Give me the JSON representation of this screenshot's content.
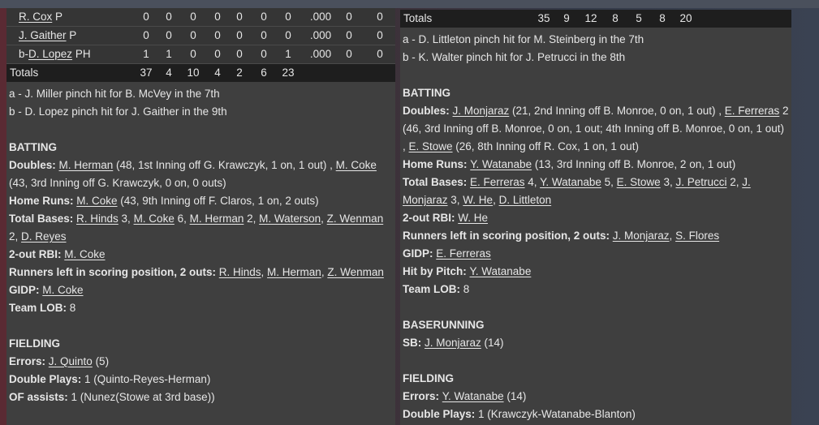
{
  "left": {
    "rows": [
      {
        "prefix": "",
        "name": "R. Cox",
        "pos": "P",
        "stats": [
          "0",
          "0",
          "0",
          "0",
          "0",
          "0",
          "0",
          ".000",
          "0",
          "0"
        ]
      },
      {
        "prefix": "",
        "name": "J. Gaither",
        "pos": "P",
        "stats": [
          "0",
          "0",
          "0",
          "0",
          "0",
          "0",
          "0",
          ".000",
          "0",
          "0"
        ]
      },
      {
        "prefix": "b-",
        "name": "D. Lopez",
        "pos": "PH",
        "stats": [
          "1",
          "1",
          "0",
          "0",
          "0",
          "0",
          "1",
          ".000",
          "0",
          "0"
        ]
      }
    ],
    "totals": {
      "label": "Totals",
      "stats": [
        "37",
        "4",
        "10",
        "4",
        "2",
        "6",
        "23"
      ]
    },
    "lines": [
      [
        {
          "t": "a - J. Miller pinch hit for B. McVey in the 7th"
        }
      ],
      [
        {
          "t": "b - D. Lopez pinch hit for J. Gaither in the 9th"
        }
      ],
      [],
      [
        {
          "t": "BATTING",
          "k": "b"
        }
      ],
      [
        {
          "t": "Doubles: ",
          "k": "b"
        },
        {
          "t": "M. Herman",
          "k": "a"
        },
        {
          "t": " (48, 1st Inning off G. Krawczyk, 1 on, 1 out) , "
        },
        {
          "t": "M. Coke",
          "k": "a"
        },
        {
          "t": " (43, 3rd Inning off G. Krawczyk, 0 on, 0 outs)"
        }
      ],
      [
        {
          "t": "Home Runs: ",
          "k": "b"
        },
        {
          "t": "M. Coke",
          "k": "a"
        },
        {
          "t": " (43, 9th Inning off F. Claros, 1 on, 2 outs)"
        }
      ],
      [
        {
          "t": "Total Bases: ",
          "k": "b"
        },
        {
          "t": "R. Hinds",
          "k": "a"
        },
        {
          "t": " 3, "
        },
        {
          "t": "M. Coke",
          "k": "a"
        },
        {
          "t": " 6, "
        },
        {
          "t": "M. Herman",
          "k": "a"
        },
        {
          "t": " 2, "
        },
        {
          "t": "M. Waterson",
          "k": "a"
        },
        {
          "t": ", "
        },
        {
          "t": "Z. Wenman",
          "k": "a"
        },
        {
          "t": " 2, "
        },
        {
          "t": "D. Reyes",
          "k": "a"
        }
      ],
      [
        {
          "t": "2-out RBI: ",
          "k": "b"
        },
        {
          "t": "M. Coke",
          "k": "a"
        }
      ],
      [
        {
          "t": "Runners left in scoring position, 2 outs: ",
          "k": "b"
        },
        {
          "t": "R. Hinds",
          "k": "a"
        },
        {
          "t": ", "
        },
        {
          "t": "M. Herman",
          "k": "a"
        },
        {
          "t": ", "
        },
        {
          "t": "Z. Wenman",
          "k": "a"
        }
      ],
      [
        {
          "t": "GIDP: ",
          "k": "b"
        },
        {
          "t": "M. Coke",
          "k": "a"
        }
      ],
      [
        {
          "t": "Team LOB: ",
          "k": "b"
        },
        {
          "t": "8"
        }
      ],
      [],
      [
        {
          "t": "FIELDING",
          "k": "b"
        }
      ],
      [
        {
          "t": "Errors: ",
          "k": "b"
        },
        {
          "t": "J. Quinto",
          "k": "a"
        },
        {
          "t": " (5)"
        }
      ],
      [
        {
          "t": "Double Plays: ",
          "k": "b"
        },
        {
          "t": "1 (Quinto-Reyes-Herman)"
        }
      ],
      [
        {
          "t": "OF assists: ",
          "k": "b"
        },
        {
          "t": "1 (Nunez(Stowe at 3rd base))"
        }
      ]
    ]
  },
  "right": {
    "totals": {
      "label": "Totals",
      "stats": [
        "35",
        "9",
        "12",
        "8",
        "5",
        "8",
        "20"
      ]
    },
    "lines": [
      [
        {
          "t": "a - D. Littleton pinch hit for M. Steinberg in the 7th"
        }
      ],
      [
        {
          "t": "b - K. Walter pinch hit for J. Petrucci in the 8th"
        }
      ],
      [],
      [
        {
          "t": "BATTING",
          "k": "b"
        }
      ],
      [
        {
          "t": "Doubles: ",
          "k": "b"
        },
        {
          "t": "J. Monjaraz",
          "k": "a"
        },
        {
          "t": " (21, 2nd Inning off B. Monroe, 0 on, 1 out) , "
        },
        {
          "t": "E. Ferreras",
          "k": "a"
        },
        {
          "t": " 2 (46, 3rd Inning off B. Monroe, 0 on, 1 out; 4th Inning off B. Monroe, 0 on, 1 out) , "
        },
        {
          "t": "E. Stowe",
          "k": "a"
        },
        {
          "t": " (26, 8th Inning off R. Cox, 1 on, 1 out)"
        }
      ],
      [
        {
          "t": "Home Runs: ",
          "k": "b"
        },
        {
          "t": "Y. Watanabe",
          "k": "a"
        },
        {
          "t": " (13, 3rd Inning off B. Monroe, 2 on, 1 out)"
        }
      ],
      [
        {
          "t": "Total Bases: ",
          "k": "b"
        },
        {
          "t": "E. Ferreras",
          "k": "a"
        },
        {
          "t": " 4, "
        },
        {
          "t": "Y. Watanabe",
          "k": "a"
        },
        {
          "t": " 5, "
        },
        {
          "t": "E. Stowe",
          "k": "a"
        },
        {
          "t": " 3, "
        },
        {
          "t": "J. Petrucci",
          "k": "a"
        },
        {
          "t": " 2, "
        },
        {
          "t": "J. Monjaraz",
          "k": "a"
        },
        {
          "t": " 3, "
        },
        {
          "t": "W. He",
          "k": "a"
        },
        {
          "t": ", "
        },
        {
          "t": "D. Littleton",
          "k": "a"
        }
      ],
      [
        {
          "t": "2-out RBI: ",
          "k": "b"
        },
        {
          "t": "W. He",
          "k": "a"
        }
      ],
      [
        {
          "t": "Runners left in scoring position, 2 outs: ",
          "k": "b"
        },
        {
          "t": "J. Monjaraz",
          "k": "a"
        },
        {
          "t": ", "
        },
        {
          "t": "S. Flores",
          "k": "a"
        }
      ],
      [
        {
          "t": "GIDP: ",
          "k": "b"
        },
        {
          "t": "E. Ferreras",
          "k": "a"
        }
      ],
      [
        {
          "t": "Hit by Pitch: ",
          "k": "b"
        },
        {
          "t": "Y. Watanabe",
          "k": "a"
        }
      ],
      [
        {
          "t": "Team LOB: ",
          "k": "b"
        },
        {
          "t": "8"
        }
      ],
      [],
      [
        {
          "t": "BASERUNNING",
          "k": "b"
        }
      ],
      [
        {
          "t": "SB: ",
          "k": "b"
        },
        {
          "t": "J. Monjaraz",
          "k": "a"
        },
        {
          "t": " (14)"
        }
      ],
      [],
      [
        {
          "t": "FIELDING",
          "k": "b"
        }
      ],
      [
        {
          "t": "Errors: ",
          "k": "b"
        },
        {
          "t": "Y. Watanabe",
          "k": "a"
        },
        {
          "t": " (14)"
        }
      ],
      [
        {
          "t": "Double Plays: ",
          "k": "b"
        },
        {
          "t": "1 (Krawczyk-Watanabe-Blanton)"
        }
      ]
    ]
  }
}
